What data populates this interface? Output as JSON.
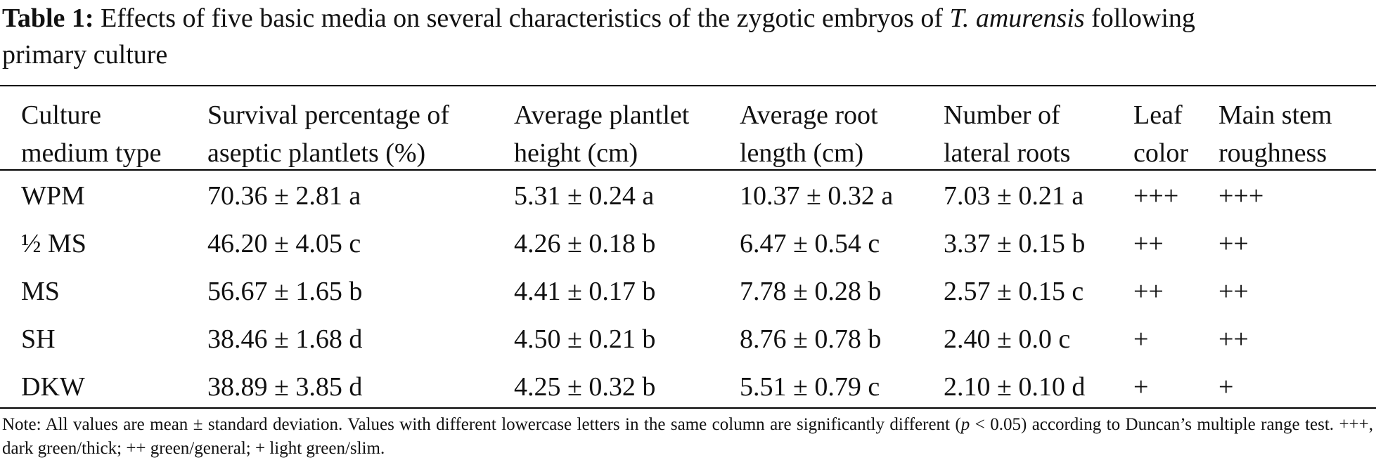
{
  "caption": {
    "label": "Table 1:",
    "text_before": "Effects of five basic media on several characteristics of the zygotic embryos of",
    "species": "T. amurensis",
    "text_after": "following",
    "text_line2": "primary culture"
  },
  "table": {
    "headers": [
      [
        "Culture",
        "medium type"
      ],
      [
        "Survival percentage of",
        "aseptic plantlets (%)"
      ],
      [
        "Average plantlet",
        "height (cm)"
      ],
      [
        "Average root",
        "length (cm)"
      ],
      [
        "Number of",
        "lateral roots"
      ],
      [
        "Leaf",
        "color"
      ],
      [
        "Main stem",
        "roughness"
      ]
    ],
    "rows": [
      [
        "WPM",
        "70.36 ± 2.81 a",
        "5.31 ± 0.24 a",
        "10.37 ± 0.32 a",
        "7.03 ± 0.21 a",
        "+++",
        "+++"
      ],
      [
        "½ MS",
        "46.20 ± 4.05 c",
        "4.26 ± 0.18 b",
        "6.47 ± 0.54 c",
        "3.37 ± 0.15 b",
        "++",
        "++"
      ],
      [
        "MS",
        "56.67 ± 1.65 b",
        "4.41 ± 0.17 b",
        "7.78 ± 0.28 b",
        "2.57 ± 0.15 c",
        "++",
        "++"
      ],
      [
        "SH",
        "38.46 ± 1.68 d",
        "4.50 ± 0.21 b",
        "8.76 ± 0.78 b",
        "2.40 ± 0.0 c",
        "+",
        "++"
      ],
      [
        "DKW",
        "38.89 ± 3.85 d",
        "4.25 ± 0.32 b",
        "5.51 ± 0.79 c",
        "2.10 ± 0.10 d",
        "+",
        "+"
      ]
    ]
  },
  "note": {
    "part1": "Note: All values are mean ± standard deviation. Values with different lowercase letters in the same column are significantly different (",
    "pvar": "p",
    "part2": " < 0.05) according to Duncan’s multiple range test. +++, dark green/thick; ++ green/general; + light green/slim."
  }
}
